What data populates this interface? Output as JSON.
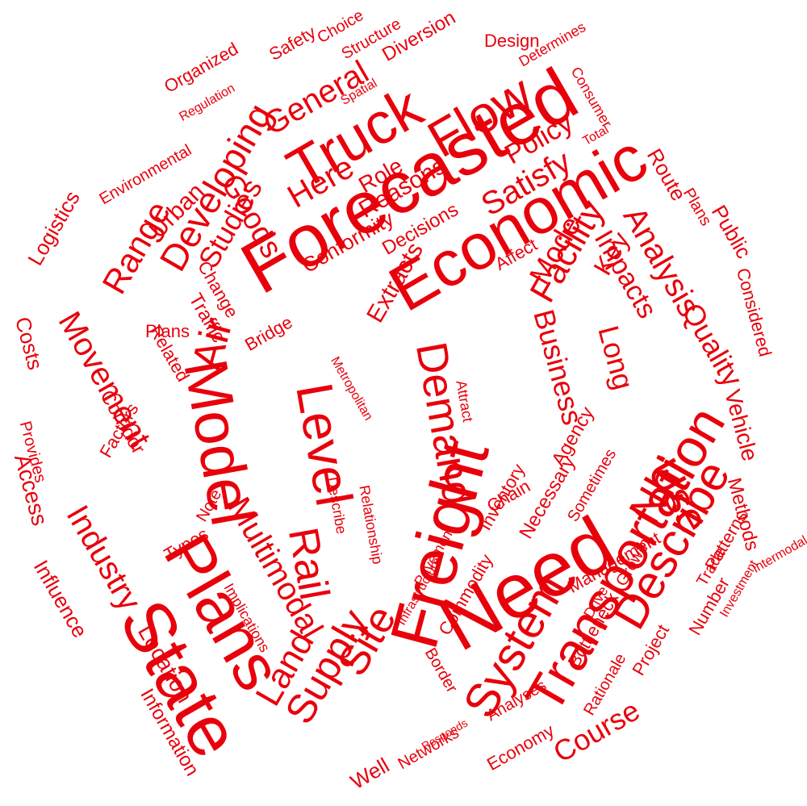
{
  "theme": {
    "word_color": "#e8000b",
    "background": "#ffffff"
  },
  "words": [
    "Forecasted",
    "Economic",
    "Truck",
    "Flow",
    "Freight",
    "Need",
    "State",
    "Plans",
    "Model",
    "Level",
    "Transportation",
    "Describe",
    "System",
    "Supply",
    "Rail",
    "Demand",
    "Nhi",
    "Use",
    "Site",
    "Land",
    "Multimodal",
    "Industry",
    "Movement",
    "Air",
    "Range",
    "Developing",
    "Studies",
    "Urban",
    "General",
    "Here",
    "Goods",
    "Satisfy",
    "Policy",
    "Facility",
    "Analysis",
    "Impacts",
    "Key",
    "Mode",
    "Quality",
    "Long",
    "Business",
    "Role",
    "Reasons",
    "Decisions",
    "Conformity",
    "Affect",
    "Related",
    "Traffic",
    "Bridge",
    "Extracts",
    "Metropolitan",
    "Corridor",
    "Factors",
    "Location",
    "Information",
    "Costs",
    "Access",
    "Logistics",
    "Environmental",
    "Organized",
    "Safety",
    "Choice",
    "Structure",
    "Diversion",
    "Design",
    "Route",
    "Public",
    "Considered",
    "Vehicle",
    "Methods",
    "Patterns",
    "Number",
    "Project",
    "Rationale",
    "Bottleneck",
    "Course",
    "Analyses",
    "Responds",
    "Economy",
    "Networks",
    "Well",
    "Commodity",
    "Infrastructure",
    "Pavement",
    "Border",
    "Relationship",
    "Necessary",
    "Sometimes",
    "Management",
    "Inventory",
    "Drive",
    "Agency",
    "Chain",
    "Growth",
    "Trade",
    "Investment",
    "Implications",
    "Types",
    "Provides",
    "Influence",
    "Determines",
    "Regulation",
    "Consumer",
    "Intermodal",
    "Spatial",
    "Total",
    "Change",
    "Note",
    "Plans",
    "Attract",
    "Describe",
    "Modal"
  ]
}
